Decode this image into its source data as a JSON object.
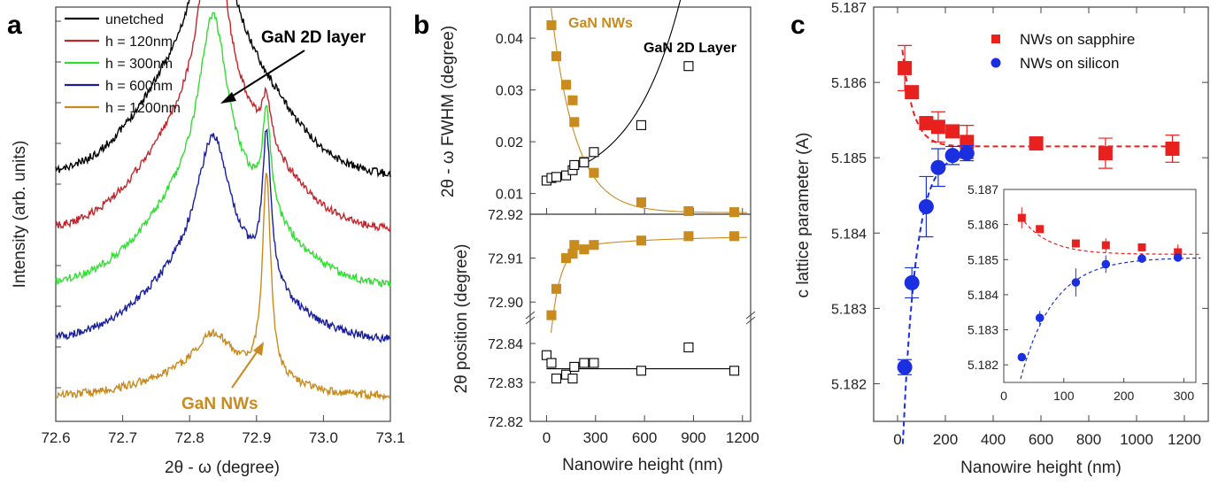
{
  "panels": {
    "a": {
      "letter": "a",
      "ylabel": "Intensity (arb. units)",
      "xlabel": "2θ - ω (degree)",
      "xticks": [
        "72.6",
        "72.7",
        "72.8",
        "72.9",
        "73.0",
        "73.1"
      ],
      "legend": [
        {
          "label": "unetched",
          "color": "#000000"
        },
        {
          "label": "h =   120nm",
          "color": "#c0272d"
        },
        {
          "label": "h =   300nm",
          "color": "#2ee02e"
        },
        {
          "label": "h =   600nm",
          "color": "#1a1f9c"
        },
        {
          "label": "h = 1200nm",
          "color": "#c98a1e"
        }
      ],
      "annotation_2d": "GaN 2D layer",
      "annotation_nw": "GaN NWs"
    },
    "b": {
      "letter": "b",
      "top_ylabel": "2θ - ω FWHM (degree)",
      "bottom_ylabel": "2θ position (degree)",
      "xlabel": "Nanowire height (nm)",
      "label_nw": "GaN NWs",
      "label_2d": "GaN 2D Layer",
      "top_yticks": [
        "0.01",
        "0.02",
        "0.03",
        "0.04"
      ],
      "bottom_yticks_upper": [
        "72.92",
        "72.91",
        "72.90"
      ],
      "bottom_yticks_lower": [
        "72.84",
        "72.83",
        "72.82"
      ],
      "xticks": [
        "0",
        "300",
        "600",
        "900",
        "1200"
      ]
    },
    "c": {
      "letter": "c",
      "ylabel": "c lattice parameter (A)",
      "xlabel": "Nanowire height (nm)",
      "yticks": [
        "5.182",
        "5.183",
        "5.184",
        "5.185",
        "5.186",
        "5.187"
      ],
      "xticks": [
        "0",
        "200",
        "400",
        "600",
        "800",
        "1000",
        "1200"
      ],
      "legend_sapphire": "NWs on sapphire",
      "legend_silicon": "NWs on silicon",
      "inset_yticks": [
        "5.182",
        "5.183",
        "5.184",
        "5.185",
        "5.186",
        "5.187"
      ],
      "inset_xticks": [
        "0",
        "100",
        "200",
        "300"
      ]
    }
  },
  "colors": {
    "sapphire": "#e8201e",
    "silicon": "#1a2fe0",
    "nw": "#c98a1e",
    "layer2d": "#000000"
  },
  "chart_data": [
    {
      "type": "line",
      "title": "",
      "xlabel": "2θ - ω (degree)",
      "ylabel": "Intensity (arb. units)",
      "xlim": [
        72.6,
        73.1
      ],
      "peaks": {
        "GaN 2D layer": 72.835,
        "GaN NWs": 72.915
      },
      "series": [
        {
          "name": "unetched",
          "offset": 4,
          "layer_peak": 9.7,
          "nw_peak": 0
        },
        {
          "name": "h =   120nm",
          "offset": 3,
          "layer_peak": 8.5,
          "nw_peak": 1.1
        },
        {
          "name": "h =   300nm",
          "offset": 2,
          "layer_peak": 7.0,
          "nw_peak": 2.4
        },
        {
          "name": "h =   600nm",
          "offset": 1,
          "layer_peak": 5.3,
          "nw_peak": 3.6
        },
        {
          "name": "h = 1200nm",
          "offset": 0,
          "layer_peak": 1.6,
          "nw_peak": 5.0
        }
      ]
    },
    {
      "type": "scatter",
      "title": "",
      "xlabel": "Nanowire height (nm)",
      "ylabel": "2θ - ω FWHM (degree)",
      "xlim": [
        -100,
        1250
      ],
      "ylim": [
        0.006,
        0.046
      ],
      "series": [
        {
          "name": "GaN NWs",
          "x": [
            30,
            60,
            120,
            160,
            170,
            230,
            290,
            580,
            870,
            1150
          ],
          "y": [
            0.0425,
            0.0365,
            0.031,
            0.028,
            0.0238,
            0.0162,
            0.014,
            0.0083,
            0.0066,
            0.0064
          ]
        },
        {
          "name": "GaN 2D Layer",
          "x": [
            0,
            30,
            60,
            120,
            160,
            170,
            230,
            290,
            580,
            870
          ],
          "y": [
            0.0125,
            0.013,
            0.0132,
            0.0135,
            0.0145,
            0.0155,
            0.016,
            0.018,
            0.0232,
            0.0346
          ]
        }
      ]
    },
    {
      "type": "scatter",
      "title": "",
      "xlabel": "Nanowire height (nm)",
      "ylabel": "2θ position (degree)",
      "xlim": [
        -100,
        1250
      ],
      "ylim_upper": [
        72.895,
        72.92
      ],
      "ylim_lower": [
        72.82,
        72.845
      ],
      "series": [
        {
          "name": "GaN NWs",
          "x": [
            30,
            60,
            120,
            160,
            170,
            230,
            290,
            580,
            870,
            1150
          ],
          "y": [
            72.897,
            72.903,
            72.91,
            72.911,
            72.913,
            72.912,
            72.913,
            72.914,
            72.915,
            72.915
          ]
        },
        {
          "name": "GaN 2D Layer",
          "x": [
            0,
            30,
            60,
            120,
            160,
            170,
            230,
            290,
            580,
            870,
            1150
          ],
          "y": [
            72.837,
            72.835,
            72.831,
            72.832,
            72.831,
            72.834,
            72.835,
            72.835,
            72.833,
            72.839,
            72.833
          ]
        }
      ]
    },
    {
      "type": "scatter",
      "title": "",
      "xlabel": "Nanowire height (nm)",
      "ylabel": "c lattice parameter (A)",
      "xlim": [
        -100,
        1300
      ],
      "ylim": [
        5.1815,
        5.187
      ],
      "series": [
        {
          "name": "NWs on sapphire",
          "x": [
            30,
            60,
            120,
            170,
            230,
            290,
            580,
            870,
            1150
          ],
          "y": [
            5.18619,
            5.18587,
            5.18546,
            5.18541,
            5.18535,
            5.18521,
            5.18519,
            5.18506,
            5.18512
          ],
          "err": [
            0.0003,
            8e-05,
            8e-05,
            0.0002,
            8e-05,
            0.00022,
            8e-05,
            0.0002,
            0.00018
          ]
        },
        {
          "name": "NWs on silicon",
          "x": [
            30,
            60,
            120,
            170,
            230,
            290
          ],
          "y": [
            5.18222,
            5.18334,
            5.18435,
            5.18487,
            5.18503,
            5.18506
          ],
          "err": [
            0.0001,
            0.0002,
            0.0004,
            0.00025,
            0.00012,
            0.0001
          ]
        }
      ],
      "inset": {
        "xlim": [
          0,
          320
        ],
        "ylim": [
          5.1815,
          5.187
        ]
      }
    }
  ]
}
